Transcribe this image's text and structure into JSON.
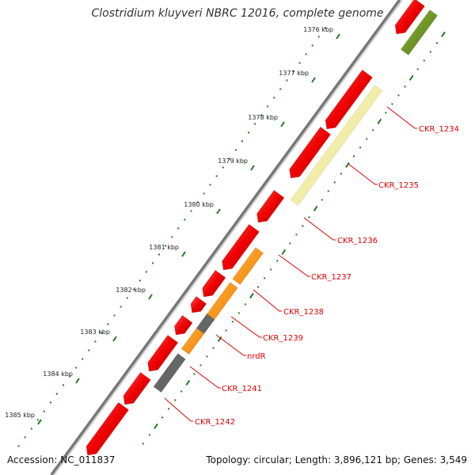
{
  "title": "Clostridium kluyveri NBRC 12016, complete genome",
  "footer": {
    "accession": "Accession: NC_011837",
    "summary": "Topology: circular; Length: 3,896,121 bp; Genes: 3,549"
  },
  "colors": {
    "backbone": "#888888",
    "cds_red": "#ee0000",
    "cds_orange": "#ff8c00",
    "cds_pale_yellow": "#f0ec9c",
    "cds_olive": "#6b8e23",
    "cds_gray": "#666666",
    "tick": "#1f7a1f",
    "label": "#e00000"
  },
  "scale_ticks": [
    "1376 kbp",
    "1377 kbp",
    "1378 kbp",
    "1379 kbp",
    "1380 kbp",
    "1381 kbp",
    "1382 kbp",
    "1383 kbp",
    "1384 kbp",
    "1385 kbp"
  ],
  "gene_labels": [
    "CKR_1234",
    "CKR_1235",
    "CKR_1236",
    "CKR_1237",
    "CKR_1238",
    "CKR_1239",
    "nrdR",
    "CKR_1241",
    "CKR_1242"
  ]
}
